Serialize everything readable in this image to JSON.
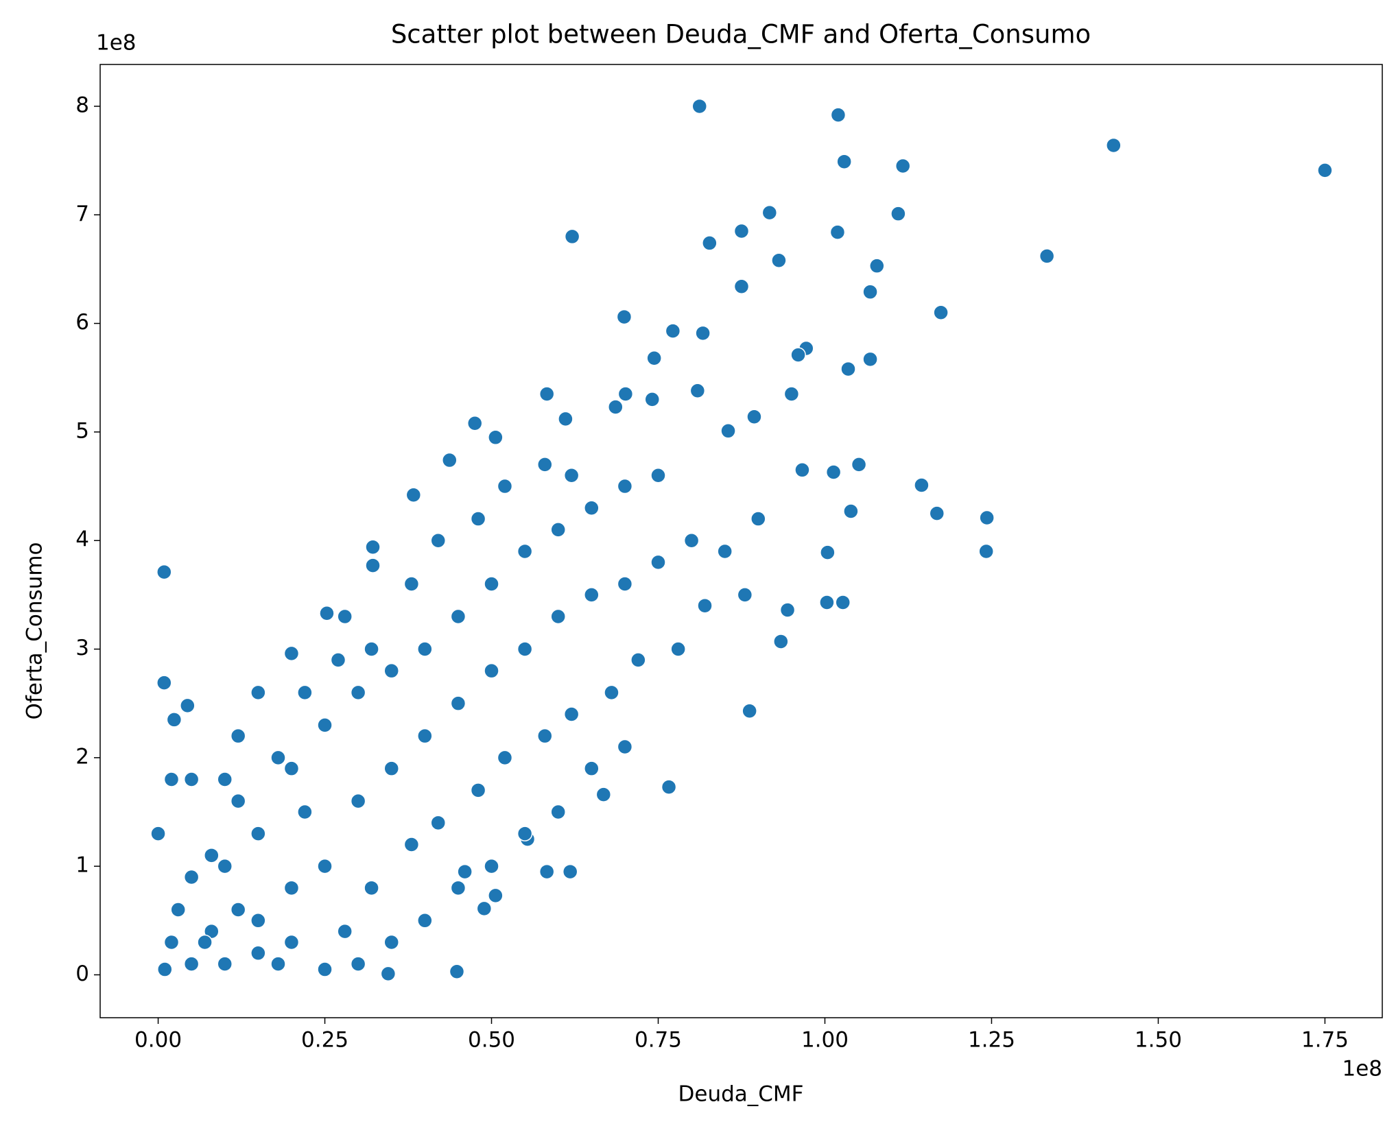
{
  "chart_data": {
    "type": "scatter",
    "title": "Scatter plot between Deuda_CMF and Oferta_Consumo",
    "x_label": "Deuda_CMF",
    "y_label": "Oferta_Consumo",
    "x_offset_label": "1e8",
    "y_offset_label": "1e8",
    "color": "#1f77b4",
    "xlim": [
      -0.087,
      1.836
    ],
    "ylim": [
      -0.395,
      8.385
    ],
    "xticks": [
      {
        "value": 0,
        "label": "0.00"
      },
      {
        "value": 0.25,
        "label": "0.25"
      },
      {
        "value": 0.5,
        "label": "0.50"
      },
      {
        "value": 0.75,
        "label": "0.75"
      },
      {
        "value": 1,
        "label": "1.00"
      },
      {
        "value": 1.25,
        "label": "1.25"
      },
      {
        "value": 1.5,
        "label": "1.50"
      },
      {
        "value": 1.75,
        "label": "1.75"
      }
    ],
    "yticks": [
      0,
      1,
      2,
      3,
      4,
      5,
      6,
      7,
      8
    ],
    "x": [
      0.812,
      1.02,
      1.029,
      1.117,
      1.433,
      1.75,
      0.621,
      0.827,
      0.917,
      1.11,
      0.875,
      1.019,
      0.931,
      1.078,
      1.333,
      0.875,
      1.068,
      1.174,
      0.699,
      0.772,
      0.817,
      0.972,
      0.96,
      0.744,
      1.068,
      1.035,
      0.009,
      0.009,
      0.024,
      0.044,
      0.448,
      0.345,
      1.243,
      1.242,
      1.145,
      1.168,
      1.039,
      1.051,
      1.013,
      1.004,
      1.027,
      1.003,
      0.944,
      0.934,
      0.887,
      0.766,
      0.668,
      0.583,
      0.618,
      0.554,
      0.489,
      0.506,
      0.583,
      0.611,
      0.506,
      0.475,
      0.437,
      0.383,
      0.322,
      0.253,
      0.2,
      0.322,
      0.95,
      0.809,
      0.855,
      0.894,
      0.741,
      0.701,
      0.686,
      0.966,
      0.01,
      0.02,
      0.03,
      0.0,
      0.05,
      0.08,
      0.1,
      0.1,
      0.12,
      0.15,
      0.15,
      0.18,
      0.2,
      0.2,
      0.22,
      0.25,
      0.25,
      0.28,
      0.3,
      0.3,
      0.32,
      0.35,
      0.35,
      0.38,
      0.4,
      0.4,
      0.42,
      0.45,
      0.45,
      0.48,
      0.5,
      0.5,
      0.52,
      0.55,
      0.55,
      0.58,
      0.6,
      0.6,
      0.62,
      0.65,
      0.65,
      0.68,
      0.7,
      0.7,
      0.72,
      0.75,
      0.75,
      0.78,
      0.8,
      0.82,
      0.85,
      0.88,
      0.9,
      0.12,
      0.15,
      0.18,
      0.05,
      0.02,
      0.08,
      0.28,
      0.32,
      0.38,
      0.42,
      0.48,
      0.52,
      0.58,
      0.62,
      0.45,
      0.4,
      0.35,
      0.3,
      0.25,
      0.05,
      0.07,
      0.15,
      0.2,
      0.6,
      0.55,
      0.65,
      0.7,
      0.5,
      0.46,
      0.22,
      0.27,
      0.12,
      0.1
    ],
    "values": [
      8.0,
      7.92,
      7.49,
      7.45,
      7.64,
      7.41,
      6.8,
      6.74,
      7.02,
      7.01,
      6.85,
      6.84,
      6.58,
      6.53,
      6.62,
      6.34,
      6.29,
      6.1,
      6.06,
      5.93,
      5.91,
      5.77,
      5.71,
      5.68,
      5.67,
      5.58,
      3.71,
      2.69,
      2.35,
      2.48,
      0.03,
      0.01,
      4.21,
      3.9,
      4.51,
      4.25,
      4.27,
      4.7,
      4.63,
      3.89,
      3.43,
      3.43,
      3.36,
      3.07,
      2.43,
      1.73,
      1.66,
      0.95,
      0.95,
      1.25,
      0.61,
      0.73,
      5.35,
      5.12,
      4.95,
      5.08,
      4.74,
      4.42,
      3.94,
      3.33,
      2.96,
      3.77,
      5.35,
      5.38,
      5.01,
      5.14,
      5.3,
      5.35,
      5.23,
      4.65,
      0.05,
      0.3,
      0.6,
      1.3,
      0.9,
      0.4,
      1.0,
      0.1,
      0.6,
      1.3,
      0.5,
      0.1,
      1.9,
      0.8,
      1.5,
      2.3,
      1.0,
      0.4,
      2.6,
      1.6,
      0.8,
      2.8,
      1.9,
      1.2,
      3.0,
      2.2,
      1.4,
      3.3,
      2.5,
      1.7,
      3.6,
      2.8,
      2.0,
      3.9,
      3.0,
      2.2,
      4.1,
      3.3,
      2.4,
      4.3,
      3.5,
      2.6,
      4.5,
      3.6,
      2.9,
      4.6,
      3.8,
      3.0,
      4.0,
      3.4,
      3.9,
      3.5,
      4.2,
      2.2,
      2.6,
      2.0,
      1.8,
      1.8,
      1.1,
      3.3,
      3.0,
      3.6,
      4.0,
      4.2,
      4.5,
      4.7,
      4.6,
      0.8,
      0.5,
      0.3,
      0.1,
      0.05,
      0.1,
      0.3,
      0.2,
      0.3,
      1.5,
      1.3,
      1.9,
      2.1,
      1.0,
      0.95,
      2.6,
      2.9,
      1.6,
      1.8
    ]
  }
}
